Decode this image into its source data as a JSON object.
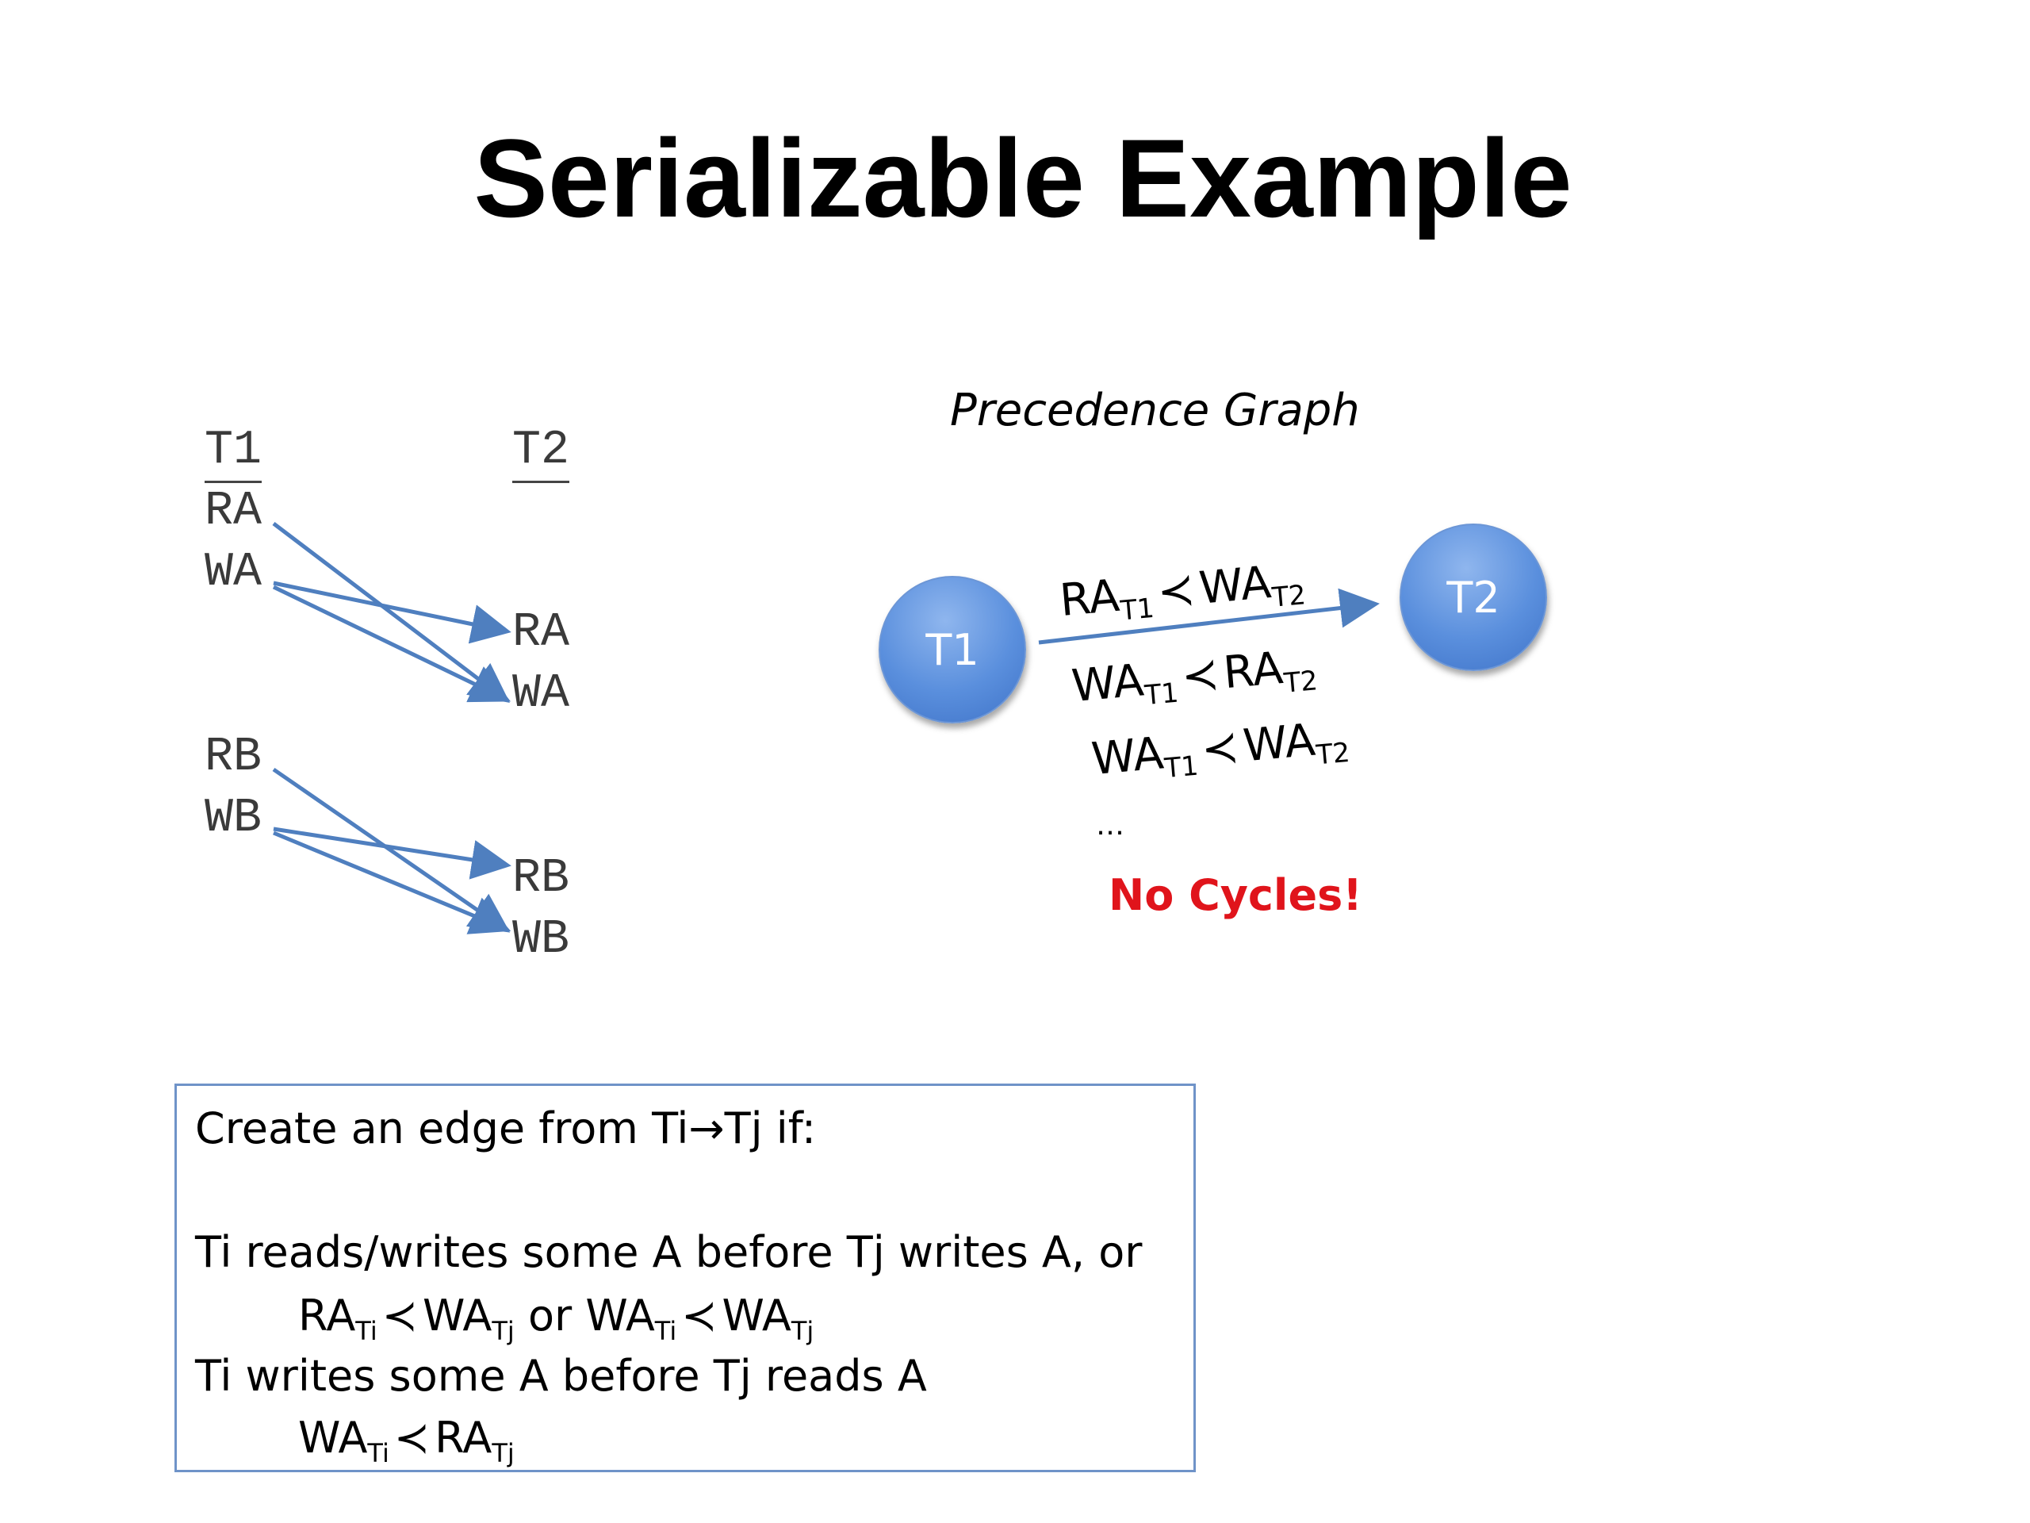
{
  "title": "Serializable Example",
  "schedule": {
    "t1_header": "T1",
    "t2_header": "T2",
    "t1_ops": [
      "RA",
      "WA",
      "RB",
      "WB"
    ],
    "t2_ops": [
      "RA",
      "WA",
      "RB",
      "WB"
    ]
  },
  "graph": {
    "title": "Precedence Graph",
    "node_t1": "T1",
    "node_t2": "T2",
    "edge_labels": [
      {
        "a": "RA",
        "a_sub": "T1",
        "prec": "≺",
        "b": "WA",
        "b_sub": "T2"
      },
      {
        "a": "WA",
        "a_sub": "T1",
        "prec": "≺",
        "b": "RA",
        "b_sub": "T2"
      },
      {
        "a": "WA",
        "a_sub": "T1",
        "prec": "≺",
        "b": "WA",
        "b_sub": "T2"
      }
    ],
    "ellipsis": "…",
    "conclusion": "No Cycles!"
  },
  "rule_box": {
    "line1": "Create an edge from Ti→Tj if:",
    "line2": "Ti reads/writes some A before Tj writes A, or",
    "line3": {
      "p1": "RA",
      "s1": "Ti",
      "prec": "≺",
      "p2": "WA",
      "s2": "Tj",
      "or": " or ",
      "p3": "WA",
      "s3": "Ti",
      "p4": "WA",
      "s4": "Tj"
    },
    "line4": "Ti writes some A before Tj reads A",
    "line5": {
      "p1": "WA",
      "s1": "Ti",
      "prec": "≺",
      "p2": "RA",
      "s2": "Tj"
    }
  },
  "colors": {
    "arrow": "#4f7fbf",
    "node": "#5a8fdd",
    "conclusion": "#e0141b",
    "box_border": "#6f93c8"
  }
}
